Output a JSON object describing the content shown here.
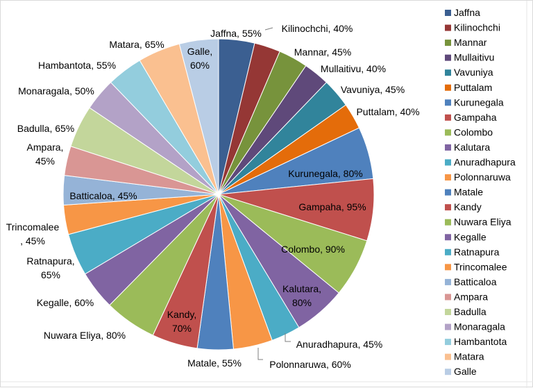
{
  "chart_data": {
    "type": "pie",
    "title": "",
    "legend_position": "right",
    "unit_suffix": "%",
    "categories": [
      "Jaffna",
      "Kilinochchi",
      "Mannar",
      "Mullaitivu",
      "Vavuniya",
      "Puttalam",
      "Kurunegala",
      "Gampaha",
      "Colombo",
      "Kalutara",
      "Anuradhapura",
      "Polonnaruwa",
      "Matale",
      "Kandy",
      "Nuwara Eliya",
      "Kegalle",
      "Ratnapura",
      "Trincomalee",
      "Batticaloa",
      "Ampara",
      "Badulla",
      "Monaragala",
      "Hambantota",
      "Matara",
      "Galle"
    ],
    "values": [
      55,
      40,
      45,
      40,
      45,
      40,
      80,
      95,
      90,
      80,
      45,
      60,
      55,
      70,
      80,
      60,
      65,
      45,
      45,
      45,
      65,
      50,
      55,
      65,
      60
    ],
    "colors": [
      "#3B5F91",
      "#953735",
      "#77933C",
      "#5F497A",
      "#31849B",
      "#E46C0A",
      "#4F81BD",
      "#C0504D",
      "#9BBB59",
      "#8064A2",
      "#4BACC6",
      "#F79646",
      "#4F81BD",
      "#C0504D",
      "#9BBB59",
      "#8064A2",
      "#4BACC6",
      "#F79646",
      "#95B3D7",
      "#D99694",
      "#C3D69B",
      "#B3A2C7",
      "#93CDDD",
      "#FAC090",
      "#B9CDE5"
    ],
    "labels": [
      [
        "Jaffna, 55%"
      ],
      [
        "Kilinochchi, 40%"
      ],
      [
        "Mannar, 45%"
      ],
      [
        "Mullaitivu, 40%"
      ],
      [
        "Vavuniya, 45%"
      ],
      [
        "Puttalam, 40%"
      ],
      [
        "Kurunegala, 80%"
      ],
      [
        "Gampaha, 95%"
      ],
      [
        "Colombo, 90%"
      ],
      [
        "Kalutara,",
        "80%"
      ],
      [
        "Anuradhapura, 45%"
      ],
      [
        "Polonnaruwa, 60%"
      ],
      [
        "Matale, 55%"
      ],
      [
        "Kandy,",
        "70%"
      ],
      [
        "Nuwara Eliya, 80%"
      ],
      [
        "Kegalle, 60%"
      ],
      [
        "Ratnapura,",
        "65%"
      ],
      [
        "Trincomalee",
        ", 45%"
      ],
      [
        "Batticaloa, 45%"
      ],
      [
        "Ampara,",
        "45%"
      ],
      [
        "Badulla, 65%"
      ],
      [
        "Monaragala, 50%"
      ],
      [
        "Hambantota, 55%"
      ],
      [
        "Matara, 65%"
      ],
      [
        "Galle,",
        "60%"
      ]
    ]
  }
}
